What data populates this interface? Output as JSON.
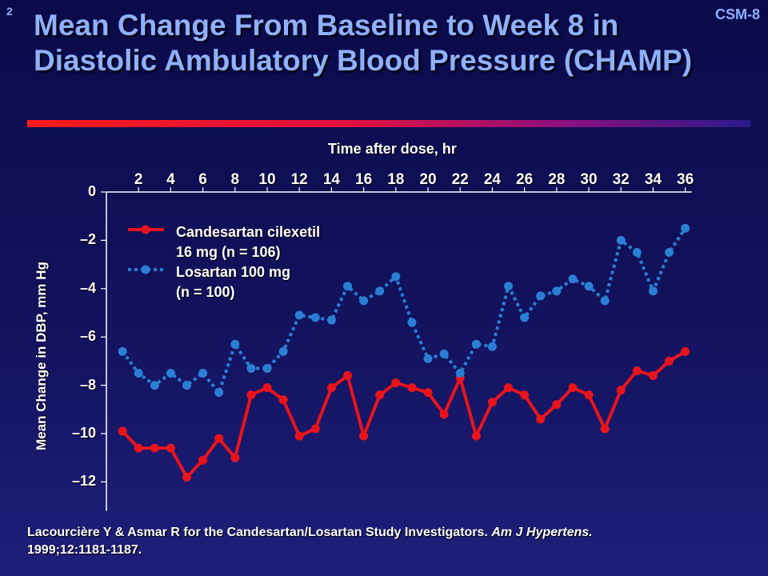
{
  "header": {
    "slide_number": "2",
    "slide_code": "CSM-8",
    "title": "Mean Change From Baseline to Week 8 in Diastolic Ambulatory Blood Pressure (CHAMP)"
  },
  "citation": {
    "text": "Lacourcière Y & Asmar R for the Candesartan/Losartan Study Investigators. ",
    "journal": "Am J Hypertens.",
    "ref": "1999;12:1181-1187."
  },
  "colors": {
    "background": "#12125e",
    "title": "#8fb0ff",
    "candesartan": "#e8141c",
    "losartan": "#2a7fd4",
    "axis": "#ffffff"
  },
  "chart_data": {
    "type": "line",
    "xlabel": "Time after dose, hr",
    "ylabel": "Mean Change in DBP, mm Hg",
    "x_ticks": [
      "2",
      "4",
      "6",
      "8",
      "10",
      "12",
      "14",
      "16",
      "18",
      "20",
      "22",
      "24",
      "26",
      "28",
      "30",
      "32",
      "34",
      "36"
    ],
    "y_ticks": [
      "0",
      "–2",
      "–4",
      "–6",
      "–8",
      "–10",
      "–12"
    ],
    "y_tick_values": [
      0,
      -2,
      -4,
      -6,
      -8,
      -10,
      -12
    ],
    "xlim": [
      0,
      36
    ],
    "ylim": [
      -13.2,
      0
    ],
    "x_axis_position": "top",
    "grid": false,
    "legend_position": "top-left",
    "series": [
      {
        "name_line1": "Candesartan cilexetil",
        "name_line2": "16 mg (n = 106)",
        "color": "#e8141c",
        "style": "solid",
        "x": [
          1,
          2,
          3,
          4,
          5,
          6,
          7,
          8,
          9,
          10,
          11,
          12,
          13,
          14,
          15,
          16,
          17,
          18,
          19,
          20,
          21,
          22,
          23,
          24,
          25,
          26,
          27,
          28,
          29,
          30,
          31,
          32,
          33,
          34,
          35,
          36
        ],
        "values": [
          -9.9,
          -10.6,
          -10.6,
          -10.6,
          -11.8,
          -11.1,
          -10.2,
          -11.0,
          -8.4,
          -8.1,
          -8.6,
          -10.1,
          -9.8,
          -8.1,
          -7.6,
          -10.1,
          -8.4,
          -7.9,
          -8.1,
          -8.3,
          -9.2,
          -7.7,
          -10.1,
          -8.7,
          -8.1,
          -8.4,
          -9.4,
          -8.8,
          -8.1,
          -8.4,
          -9.8,
          -8.2,
          -7.4,
          -7.6,
          -7.0,
          -6.6
        ]
      },
      {
        "name_line1": "Losartan 100 mg",
        "name_line2": "(n = 100)",
        "color": "#2a7fd4",
        "style": "dotted",
        "x": [
          1,
          2,
          3,
          4,
          5,
          6,
          7,
          8,
          9,
          10,
          11,
          12,
          13,
          14,
          15,
          16,
          17,
          18,
          19,
          20,
          21,
          22,
          23,
          24,
          25,
          26,
          27,
          28,
          29,
          30,
          31,
          32,
          33,
          34,
          35,
          36
        ],
        "values": [
          -6.6,
          -7.5,
          -8.0,
          -7.5,
          -8.0,
          -7.5,
          -8.3,
          -6.3,
          -7.3,
          -7.3,
          -6.6,
          -5.1,
          -5.2,
          -5.3,
          -3.9,
          -4.5,
          -4.1,
          -3.5,
          -5.4,
          -6.9,
          -6.7,
          -7.5,
          -6.3,
          -6.4,
          -3.9,
          -5.2,
          -4.3,
          -4.1,
          -3.6,
          -3.9,
          -4.5,
          -2.0,
          -2.5,
          -4.1,
          -2.5,
          -1.5
        ]
      }
    ]
  }
}
